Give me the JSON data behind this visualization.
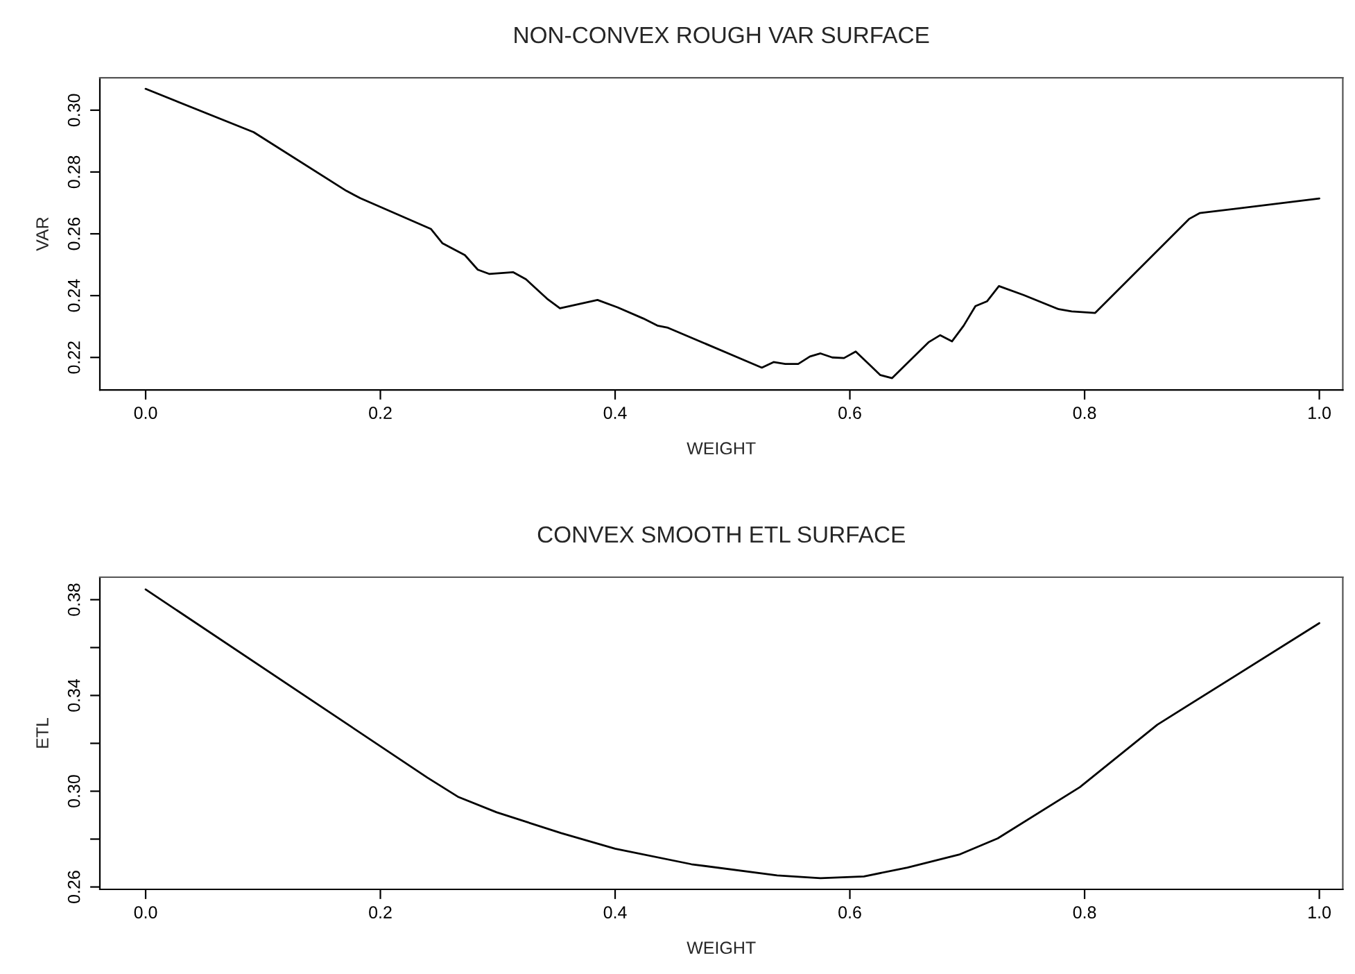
{
  "chart_data": [
    {
      "type": "line",
      "title": "NON-CONVEX ROUGH VAR SURFACE",
      "xlabel": "WEIGHT",
      "ylabel": "VAR",
      "xlim": [
        -0.039,
        1.02
      ],
      "ylim": [
        0.2095,
        0.3105
      ],
      "xticks": [
        {
          "value": 0,
          "label": "0.0"
        },
        {
          "value": 0.2,
          "label": "0.2"
        },
        {
          "value": 0.4,
          "label": "0.4"
        },
        {
          "value": 0.6,
          "label": "0.6"
        },
        {
          "value": 0.8,
          "label": "0.8"
        },
        {
          "value": 1,
          "label": "1.0"
        }
      ],
      "yticks": [
        {
          "value": 0.22,
          "label": "0.22"
        },
        {
          "value": 0.24,
          "label": "0.24"
        },
        {
          "value": 0.26,
          "label": "0.26"
        },
        {
          "value": 0.28,
          "label": "0.28"
        },
        {
          "value": 0.3,
          "label": "0.30"
        }
      ],
      "grid": false,
      "series": [
        {
          "color": "#000000",
          "x": [
            0,
            0.092,
            0.171,
            0.183,
            0.243,
            0.253,
            0.272,
            0.283,
            0.293,
            0.313,
            0.324,
            0.342,
            0.353,
            0.385,
            0.402,
            0.424,
            0.436,
            0.445,
            0.525,
            0.535,
            0.545,
            0.556,
            0.566,
            0.575,
            0.585,
            0.595,
            0.605,
            0.616,
            0.626,
            0.636,
            0.667,
            0.677,
            0.687,
            0.697,
            0.707,
            0.717,
            0.727,
            0.748,
            0.778,
            0.789,
            0.809,
            0.889,
            0.898,
            1.0
          ],
          "values": [
            0.3069,
            0.2929,
            0.2739,
            0.2715,
            0.2616,
            0.2569,
            0.2531,
            0.2484,
            0.247,
            0.2476,
            0.2453,
            0.239,
            0.2359,
            0.2386,
            0.2362,
            0.2326,
            0.2303,
            0.2296,
            0.2167,
            0.2185,
            0.2179,
            0.2179,
            0.2203,
            0.2213,
            0.22,
            0.2198,
            0.2219,
            0.2179,
            0.2143,
            0.2133,
            0.2249,
            0.2272,
            0.2252,
            0.2303,
            0.2366,
            0.2382,
            0.2431,
            0.2402,
            0.2356,
            0.2349,
            0.2344,
            0.2648,
            0.2667,
            0.2714
          ]
        }
      ]
    },
    {
      "type": "line",
      "title": "CONVEX SMOOTH ETL SURFACE",
      "xlabel": "WEIGHT",
      "ylabel": "ETL",
      "xlim": [
        -0.039,
        1.02
      ],
      "ylim": [
        0.259,
        0.3894
      ],
      "xticks": [
        {
          "value": 0,
          "label": "0.0"
        },
        {
          "value": 0.2,
          "label": "0.2"
        },
        {
          "value": 0.4,
          "label": "0.4"
        },
        {
          "value": 0.6,
          "label": "0.6"
        },
        {
          "value": 0.8,
          "label": "0.8"
        },
        {
          "value": 1,
          "label": "1.0"
        }
      ],
      "yticks": [
        {
          "value": 0.26,
          "label": "0.26"
        },
        {
          "value": 0.28,
          "label": null
        },
        {
          "value": 0.3,
          "label": "0.30"
        },
        {
          "value": 0.32,
          "label": null
        },
        {
          "value": 0.34,
          "label": "0.34"
        },
        {
          "value": 0.36,
          "label": null
        },
        {
          "value": 0.38,
          "label": "0.38"
        }
      ],
      "grid": false,
      "series": [
        {
          "color": "#000000",
          "x": [
            0,
            0.24,
            0.266,
            0.299,
            0.354,
            0.4,
            0.465,
            0.538,
            0.575,
            0.612,
            0.649,
            0.693,
            0.726,
            0.796,
            0.862,
            1.0
          ],
          "values": [
            0.3843,
            0.3057,
            0.2977,
            0.2912,
            0.2825,
            0.276,
            0.2695,
            0.2648,
            0.2637,
            0.2644,
            0.2681,
            0.2735,
            0.2803,
            0.3017,
            0.3278,
            0.3702
          ]
        }
      ]
    }
  ]
}
